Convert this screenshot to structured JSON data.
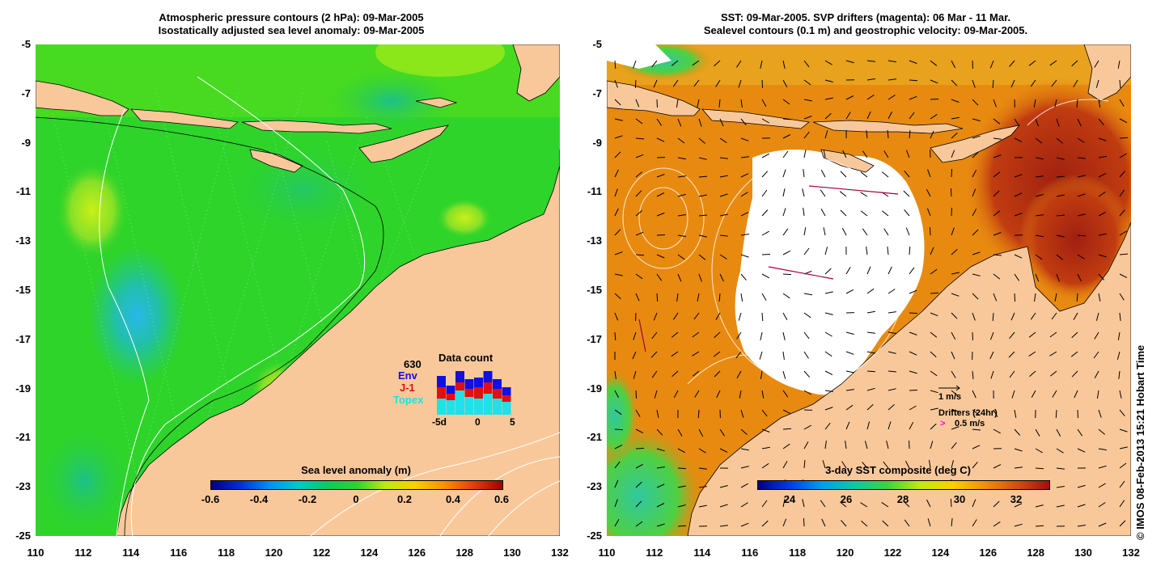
{
  "left_panel": {
    "title_line1": "Atmospheric pressure contours (2 hPa): 09-Mar-2005",
    "title_line2": "Isostatically adjusted sea level anomaly: 09-Mar-2005",
    "colorbar_title": "Sea level anomaly (m)",
    "colorbar_ticks": [
      "-0.6",
      "-0.4",
      "-0.2",
      "0",
      "0.2",
      "0.4",
      "0.6"
    ],
    "data_count": {
      "title": "Data count",
      "max_label": "630",
      "series": [
        {
          "name": "Env",
          "color": "#1010e0"
        },
        {
          "name": "J-1",
          "color": "#e01010"
        },
        {
          "name": "Topex",
          "color": "#20e0e8"
        }
      ],
      "x_ticks": [
        "-5d",
        "0",
        "5"
      ]
    }
  },
  "right_panel": {
    "title_line1": "SST: 09-Mar-2005. SVP drifters (magenta): 06 Mar - 11 Mar.",
    "title_line2": "Sealevel contours (0.1 m) and geostrophic velocity: 09-Mar-2005.",
    "colorbar_title": "3-day SST composite (deg C)",
    "colorbar_ticks": [
      "24",
      "26",
      "28",
      "30",
      "32"
    ],
    "velocity_legend": "1 m/s",
    "drifter_legend": "Drifters (24hr)",
    "drifter_scale": "0.5 m/s",
    "drifter_symbol": ">"
  },
  "y_ticks": [
    "-5",
    "-7",
    "-9",
    "-11",
    "-13",
    "-15",
    "-17",
    "-19",
    "-21",
    "-23",
    "-25"
  ],
  "x_ticks": [
    "110",
    "112",
    "114",
    "116",
    "118",
    "120",
    "122",
    "124",
    "126",
    "128",
    "130",
    "132"
  ],
  "credit": "© IMOS 08-Feb-2013 15:21 Hobart Time",
  "colors": {
    "land": "#f9c89a",
    "ocean_green": "#2ed42a",
    "sst_orange": "#e88a10",
    "sst_red": "#b02a10",
    "cloud": "#ffffff",
    "drifter": "#ff00ff"
  }
}
